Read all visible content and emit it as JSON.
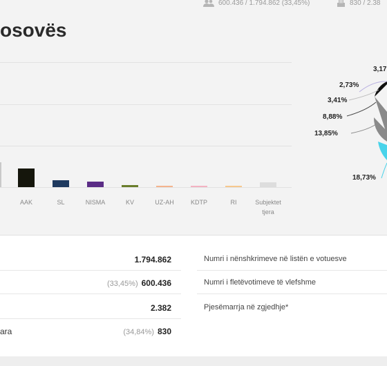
{
  "header": {
    "stat_voters": "600.436 / 1.794.862 (33,45%)",
    "stat_stations": "830 / 2.38"
  },
  "title": "osovës",
  "chart_data": [
    {
      "type": "bar",
      "categories": [
        "AAK",
        "SL",
        "NISMA",
        "KV",
        "UZ-AH",
        "KDTP",
        "RI",
        "Subjektet tjera"
      ],
      "category_lines": [
        [
          "AAK"
        ],
        [
          "SL"
        ],
        [
          "NISMA"
        ],
        [
          "KV"
        ],
        [
          "UZ-AH"
        ],
        [
          "KDTP"
        ],
        [
          "RI"
        ],
        [
          "Subjektet",
          "tjera"
        ]
      ],
      "colors": [
        "#15160c",
        "#1f3a5f",
        "#5b2d86",
        "#6a7d2b",
        "#f4b48e",
        "#f3b3c2",
        "#f6c88e",
        "#dddddd"
      ],
      "values": [
        8.88,
        3.41,
        2.73,
        0.9,
        0.6,
        0.5,
        0.5,
        2.4
      ],
      "ylim": [
        0,
        60
      ]
    },
    {
      "type": "pie",
      "labels_visible": [
        "3,17",
        "2,73%",
        "3,41%",
        "8,88%",
        "13,85%",
        "18,73%"
      ]
    }
  ],
  "summary": {
    "rows": [
      {
        "left_label": "",
        "pct": "",
        "value": "1.794.862",
        "right_label": "Numri i nënshkrimeve në listën e votuesve"
      },
      {
        "left_label": "",
        "pct": "(33,45%)",
        "value": "600.436",
        "right_label": "Numri i fletëvotimeve të vlefshme"
      },
      {
        "left_label": "",
        "pct": "",
        "value": "2.382",
        "right_label": "Pjesëmarrja në zgjedhje*"
      },
      {
        "left_label": "ara",
        "pct": "(34,84%)",
        "value": "830",
        "right_label": ""
      }
    ]
  },
  "colors": {
    "pie_black": "#111111",
    "pie_gray": "#8a8a8a",
    "pie_cyan": "#49d3ea"
  },
  "icons": {
    "voters": "people-icon",
    "stations": "ballot-box-icon"
  }
}
